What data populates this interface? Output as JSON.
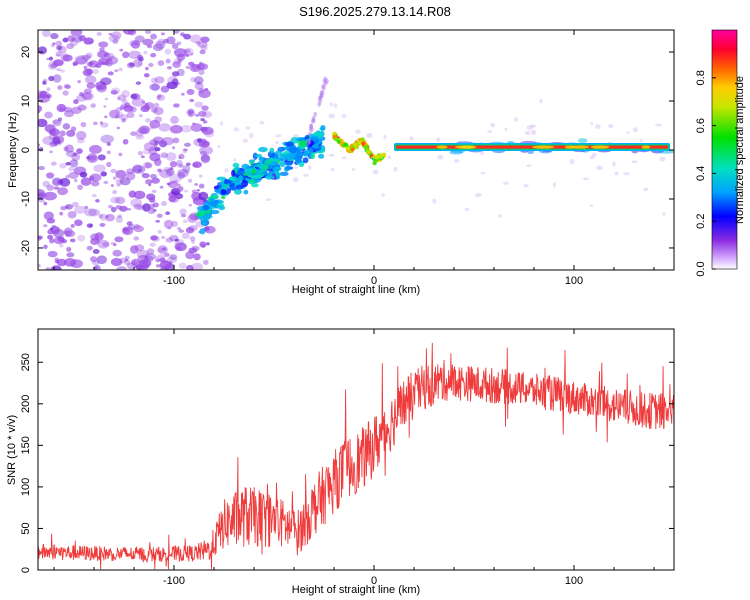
{
  "title": "S196.2025.279.13.14.R08",
  "colors": {
    "scatter_purple": "#9a4de6",
    "snr_line": "#ef3b3b",
    "frame": "#000000"
  },
  "chart_data": [
    {
      "id": "spectrogram",
      "type": "heatmap",
      "title": "S196.2025.279.13.14.R08",
      "xlabel": "Height of straight line (km)",
      "ylabel": "Frequency (Hz)",
      "xlim": [
        -168,
        150
      ],
      "ylim": [
        -24.5,
        24.5
      ],
      "xticks": [
        -100,
        0,
        100
      ],
      "yticks": [
        -20,
        -10,
        0,
        10,
        20
      ],
      "xtick_labels": [
        "-100",
        "0",
        "100"
      ],
      "ytick_labels": [
        "-20",
        "-10",
        "0",
        "10",
        "20"
      ],
      "colorbar": {
        "label": "Normalized spectral amplitude",
        "range": [
          0,
          1
        ],
        "ticks": [
          0,
          0.2,
          0.4,
          0.6,
          0.8
        ],
        "tick_labels": [
          "0.0",
          "0.2",
          "0.4",
          "0.6",
          "0.8"
        ]
      },
      "features": [
        {
          "name": "noise-region",
          "x_range": [
            -168,
            -82
          ],
          "freq_range": [
            -24.5,
            24.5
          ],
          "amplitude": 0.08
        },
        {
          "name": "chirp-rise",
          "x": [
            -87,
            -70,
            -50,
            -35,
            -25
          ],
          "freq": [
            -14,
            -6,
            -3,
            1,
            2
          ],
          "amplitude": 0.35
        },
        {
          "name": "wobble",
          "x": [
            -20,
            -12,
            -6,
            0,
            5
          ],
          "freq": [
            3,
            0,
            2,
            -2,
            -1
          ],
          "amplitude": 0.7
        },
        {
          "name": "carrier-line",
          "x_range": [
            10,
            148
          ],
          "freq": 0.6,
          "amplitude": 0.95
        }
      ]
    },
    {
      "id": "snr",
      "type": "line",
      "xlabel": "Height of straight line (km)",
      "ylabel": "SNR (10 * v/v)",
      "xlim": [
        -168,
        150
      ],
      "ylim": [
        0,
        290
      ],
      "xticks": [
        -100,
        0,
        100
      ],
      "yticks": [
        0,
        50,
        100,
        150,
        200,
        250
      ],
      "xtick_labels": [
        "-100",
        "0",
        "100"
      ],
      "ytick_labels": [
        "0",
        "50",
        "100",
        "150",
        "200",
        "250"
      ],
      "series": [
        {
          "name": "SNR",
          "x": [
            -168,
            -140,
            -110,
            -90,
            -82,
            -75,
            -65,
            -55,
            -45,
            -38,
            -30,
            -22,
            -15,
            -5,
            5,
            15,
            25,
            35,
            45,
            60,
            75,
            90,
            105,
            120,
            135,
            150
          ],
          "mean": [
            22,
            20,
            19,
            20,
            25,
            55,
            65,
            62,
            55,
            45,
            75,
            100,
            120,
            135,
            165,
            200,
            220,
            228,
            225,
            222,
            218,
            212,
            205,
            198,
            192,
            190
          ],
          "spread": [
            10,
            9,
            9,
            10,
            14,
            30,
            38,
            35,
            30,
            28,
            35,
            38,
            38,
            38,
            36,
            32,
            28,
            25,
            22,
            22,
            20,
            22,
            20,
            22,
            22,
            24
          ]
        }
      ]
    }
  ]
}
